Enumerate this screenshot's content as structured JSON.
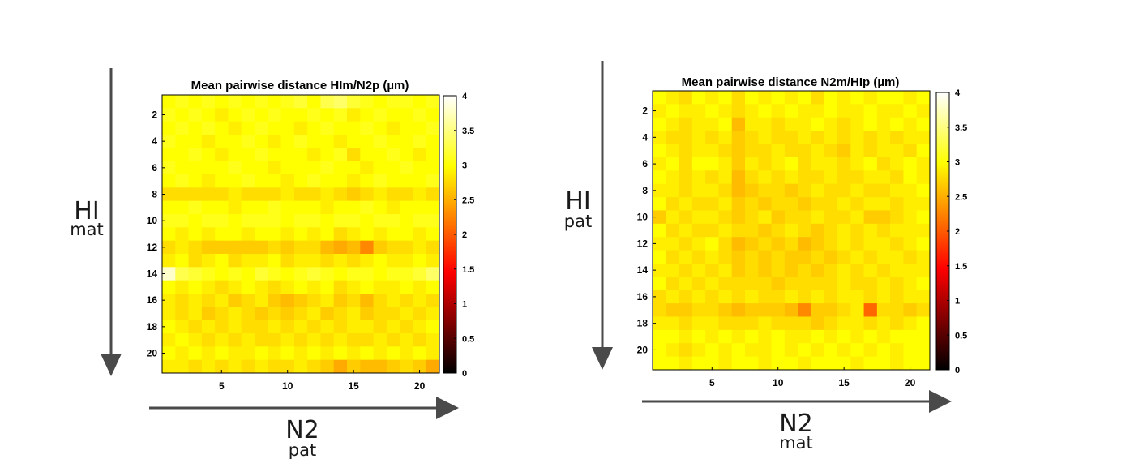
{
  "panels": [
    {
      "id": "left",
      "row_label": {
        "main": "HI",
        "sub": "mat"
      },
      "col_label": {
        "main": "N2",
        "sub": "pat"
      }
    },
    {
      "id": "right",
      "row_label": {
        "main": "HI",
        "sub": "pat"
      },
      "col_label": {
        "main": "N2",
        "sub": "mat"
      }
    }
  ],
  "colors": {
    "colormap": "hot",
    "arrow": "#4a4a4a"
  },
  "chart_data": [
    {
      "type": "heatmap",
      "title": "Mean pairwise distance HIm/N2p (µm)",
      "xlabel": "",
      "ylabel": "",
      "n_cols": 21,
      "n_rows": 21,
      "x_ticks": [
        5,
        10,
        15,
        20
      ],
      "y_ticks": [
        2,
        4,
        6,
        8,
        10,
        12,
        14,
        16,
        18,
        20
      ],
      "clim": [
        0,
        4
      ],
      "colorbar_ticks": [
        "0",
        "0.5",
        "1",
        "1.5",
        "2",
        "2.5",
        "3",
        "3.5",
        "4"
      ],
      "z": [
        [
          3.0,
          3.1,
          3.0,
          3.1,
          3.0,
          3.1,
          3.0,
          3.1,
          3.0,
          3.1,
          3.2,
          3.0,
          3.3,
          3.4,
          3.2,
          3.1,
          3.0,
          3.1,
          3.1,
          3.0,
          3.1
        ],
        [
          3.1,
          3.0,
          3.1,
          3.0,
          2.9,
          3.0,
          3.1,
          3.0,
          3.1,
          3.0,
          3.0,
          3.1,
          3.0,
          3.1,
          2.9,
          3.0,
          3.1,
          3.0,
          3.0,
          3.1,
          3.0
        ],
        [
          3.0,
          3.1,
          3.0,
          3.1,
          3.0,
          2.9,
          3.0,
          3.1,
          3.0,
          3.0,
          2.9,
          3.0,
          3.1,
          3.0,
          3.0,
          3.1,
          3.0,
          2.9,
          3.0,
          3.0,
          3.1
        ],
        [
          3.1,
          3.0,
          3.0,
          2.9,
          3.0,
          3.0,
          3.1,
          3.0,
          2.9,
          3.0,
          3.1,
          3.0,
          3.0,
          2.9,
          3.0,
          3.0,
          3.1,
          3.0,
          3.0,
          3.1,
          3.0
        ],
        [
          3.0,
          3.0,
          3.1,
          3.0,
          2.9,
          3.0,
          3.0,
          3.1,
          3.0,
          3.0,
          3.0,
          2.9,
          3.0,
          3.1,
          2.8,
          3.0,
          3.0,
          3.1,
          3.0,
          2.9,
          3.0
        ],
        [
          3.1,
          3.0,
          3.0,
          3.0,
          3.0,
          3.1,
          3.0,
          3.0,
          2.9,
          3.0,
          3.0,
          3.0,
          3.1,
          3.0,
          3.0,
          2.9,
          3.0,
          3.0,
          3.1,
          3.0,
          3.0
        ],
        [
          3.0,
          3.1,
          3.0,
          2.9,
          3.0,
          3.0,
          3.1,
          3.0,
          3.0,
          2.9,
          3.0,
          3.1,
          3.0,
          3.0,
          2.9,
          3.0,
          3.1,
          3.0,
          3.0,
          3.0,
          3.1
        ],
        [
          2.8,
          2.8,
          2.8,
          2.8,
          2.8,
          2.9,
          2.8,
          2.8,
          2.8,
          2.9,
          2.8,
          2.8,
          2.9,
          2.8,
          2.7,
          2.8,
          2.9,
          2.8,
          2.8,
          2.9,
          2.8
        ],
        [
          3.0,
          3.0,
          3.1,
          3.0,
          3.0,
          2.9,
          3.0,
          3.0,
          3.1,
          3.0,
          3.0,
          3.0,
          2.9,
          3.0,
          3.0,
          3.1,
          3.0,
          2.9,
          3.0,
          3.0,
          3.0
        ],
        [
          3.1,
          3.1,
          3.0,
          3.1,
          3.1,
          3.0,
          3.1,
          3.1,
          3.1,
          3.0,
          3.1,
          3.1,
          3.0,
          3.1,
          3.1,
          3.0,
          3.1,
          3.1,
          3.0,
          3.1,
          3.1
        ],
        [
          3.0,
          2.9,
          3.0,
          2.9,
          3.0,
          3.0,
          2.9,
          3.0,
          3.0,
          2.9,
          3.0,
          2.9,
          3.0,
          2.8,
          2.9,
          3.0,
          2.9,
          3.0,
          3.0,
          2.9,
          3.0
        ],
        [
          2.8,
          2.9,
          2.8,
          2.7,
          2.7,
          2.7,
          2.7,
          2.7,
          2.8,
          2.7,
          2.8,
          2.8,
          2.6,
          2.5,
          2.6,
          2.3,
          2.7,
          2.8,
          2.8,
          2.9,
          2.8
        ],
        [
          2.9,
          3.0,
          2.8,
          2.9,
          3.0,
          2.8,
          2.9,
          2.9,
          3.0,
          2.8,
          2.9,
          2.9,
          2.8,
          2.9,
          2.8,
          2.9,
          3.0,
          2.9,
          2.9,
          3.0,
          2.9
        ],
        [
          3.8,
          3.3,
          3.2,
          3.1,
          3.0,
          3.1,
          3.0,
          3.2,
          3.1,
          3.0,
          3.1,
          3.2,
          3.1,
          3.0,
          3.1,
          3.1,
          3.0,
          3.1,
          3.1,
          3.2,
          3.4
        ],
        [
          3.0,
          2.9,
          3.0,
          2.9,
          2.8,
          2.9,
          3.0,
          2.9,
          2.8,
          2.9,
          3.0,
          2.9,
          3.0,
          2.8,
          2.9,
          3.0,
          2.9,
          2.9,
          3.0,
          2.9,
          3.0
        ],
        [
          2.9,
          2.8,
          2.9,
          2.8,
          2.9,
          2.7,
          2.8,
          2.9,
          2.7,
          2.6,
          2.7,
          2.8,
          2.9,
          2.7,
          2.8,
          2.6,
          2.8,
          2.9,
          2.8,
          2.9,
          2.8
        ],
        [
          2.9,
          2.8,
          2.9,
          2.7,
          2.8,
          2.9,
          2.8,
          2.7,
          2.8,
          2.7,
          2.8,
          2.9,
          2.7,
          2.8,
          2.9,
          2.7,
          2.8,
          2.8,
          2.9,
          2.8,
          2.9
        ],
        [
          3.0,
          2.9,
          2.8,
          2.9,
          2.8,
          2.9,
          2.8,
          2.8,
          2.9,
          2.8,
          2.9,
          2.8,
          2.9,
          2.8,
          2.9,
          2.9,
          2.8,
          2.9,
          2.8,
          2.9,
          3.0
        ],
        [
          2.9,
          3.0,
          2.9,
          2.8,
          2.9,
          2.8,
          2.9,
          2.8,
          2.8,
          2.9,
          2.8,
          2.9,
          2.8,
          2.9,
          2.8,
          2.8,
          2.9,
          2.8,
          2.9,
          2.8,
          2.9
        ],
        [
          3.0,
          2.9,
          3.0,
          2.9,
          3.0,
          2.9,
          2.9,
          3.0,
          2.9,
          3.0,
          2.9,
          3.0,
          2.9,
          3.0,
          2.9,
          3.0,
          2.9,
          3.0,
          2.9,
          3.0,
          2.9
        ],
        [
          2.9,
          2.9,
          2.8,
          2.9,
          2.8,
          2.9,
          2.8,
          2.9,
          2.8,
          2.8,
          2.9,
          2.8,
          2.7,
          2.5,
          2.7,
          2.6,
          2.6,
          2.7,
          2.8,
          2.7,
          2.5
        ]
      ]
    },
    {
      "type": "heatmap",
      "title": "Mean pairwise distance N2m/HIp (µm)",
      "xlabel": "",
      "ylabel": "",
      "n_cols": 21,
      "n_rows": 21,
      "x_ticks": [
        5,
        10,
        15,
        20
      ],
      "y_ticks": [
        2,
        4,
        6,
        8,
        10,
        12,
        14,
        16,
        18,
        20
      ],
      "clim": [
        0,
        4
      ],
      "colorbar_ticks": [
        "0",
        "0.5",
        "1",
        "1.5",
        "2",
        "2.5",
        "3",
        "3.5",
        "4"
      ],
      "z": [
        [
          3.0,
          2.9,
          2.8,
          3.0,
          2.9,
          3.0,
          2.8,
          3.0,
          2.9,
          3.0,
          2.9,
          3.0,
          2.8,
          3.0,
          2.9,
          3.0,
          2.9,
          3.0,
          3.0,
          2.9,
          3.0
        ],
        [
          2.9,
          3.0,
          2.9,
          2.9,
          3.0,
          2.9,
          2.8,
          2.9,
          3.0,
          2.9,
          3.0,
          2.9,
          2.9,
          3.0,
          2.9,
          2.9,
          3.0,
          2.9,
          2.9,
          3.0,
          2.9
        ],
        [
          3.0,
          2.9,
          2.8,
          2.9,
          2.9,
          3.0,
          2.6,
          2.9,
          2.9,
          2.8,
          2.9,
          2.9,
          3.0,
          2.9,
          2.8,
          2.9,
          3.0,
          2.9,
          3.0,
          2.9,
          3.0
        ],
        [
          2.9,
          2.8,
          2.8,
          2.9,
          2.8,
          2.9,
          2.7,
          2.8,
          2.9,
          2.8,
          2.8,
          2.9,
          2.8,
          2.9,
          2.8,
          2.9,
          2.8,
          2.9,
          2.8,
          2.9,
          2.9
        ],
        [
          3.0,
          2.9,
          2.8,
          2.9,
          2.9,
          2.8,
          2.7,
          2.8,
          2.8,
          2.9,
          2.8,
          2.8,
          2.9,
          2.8,
          2.7,
          2.9,
          2.8,
          2.9,
          2.9,
          2.8,
          3.0
        ],
        [
          2.9,
          3.0,
          2.8,
          3.0,
          3.0,
          2.9,
          2.7,
          2.9,
          2.8,
          2.9,
          3.0,
          2.8,
          2.9,
          2.9,
          2.8,
          2.9,
          3.0,
          2.8,
          2.9,
          3.0,
          2.9
        ],
        [
          3.0,
          2.9,
          2.8,
          2.9,
          2.8,
          2.9,
          2.6,
          2.8,
          2.9,
          2.8,
          2.9,
          2.8,
          2.8,
          2.9,
          2.8,
          2.8,
          2.9,
          2.9,
          2.8,
          3.0,
          2.9
        ],
        [
          2.9,
          2.9,
          2.8,
          2.9,
          2.9,
          2.8,
          2.6,
          2.7,
          2.8,
          2.8,
          2.7,
          2.8,
          2.9,
          2.8,
          2.8,
          2.9,
          2.8,
          2.8,
          2.9,
          2.9,
          3.0
        ],
        [
          3.0,
          2.8,
          2.9,
          2.8,
          2.8,
          2.9,
          2.7,
          2.8,
          2.7,
          2.8,
          2.8,
          2.7,
          2.8,
          2.8,
          2.9,
          2.8,
          2.9,
          2.9,
          2.8,
          2.9,
          2.9
        ],
        [
          2.7,
          2.9,
          2.8,
          2.9,
          2.9,
          2.8,
          2.7,
          2.8,
          2.9,
          2.7,
          2.8,
          2.8,
          2.9,
          2.8,
          2.8,
          2.9,
          2.7,
          2.7,
          2.8,
          2.9,
          3.0
        ],
        [
          3.0,
          2.8,
          2.9,
          2.8,
          2.8,
          2.9,
          2.8,
          2.8,
          2.7,
          2.8,
          2.9,
          2.8,
          2.7,
          2.8,
          2.9,
          2.8,
          2.9,
          2.8,
          2.9,
          2.9,
          2.9
        ],
        [
          2.9,
          2.9,
          2.8,
          2.9,
          3.0,
          2.8,
          2.6,
          2.7,
          2.8,
          2.7,
          2.8,
          2.6,
          2.7,
          2.8,
          2.9,
          2.8,
          2.9,
          2.9,
          2.8,
          2.9,
          3.0
        ],
        [
          3.0,
          2.8,
          2.9,
          2.8,
          2.9,
          2.8,
          2.7,
          2.8,
          2.7,
          2.8,
          2.7,
          2.7,
          2.8,
          2.7,
          2.8,
          2.9,
          2.8,
          2.9,
          2.9,
          2.8,
          2.9
        ],
        [
          2.9,
          2.9,
          2.8,
          2.9,
          2.8,
          2.9,
          2.7,
          2.8,
          2.7,
          2.8,
          2.7,
          2.8,
          2.7,
          2.8,
          2.9,
          2.8,
          2.9,
          2.8,
          2.9,
          2.9,
          2.9
        ],
        [
          3.0,
          2.8,
          2.9,
          2.8,
          2.9,
          2.8,
          2.8,
          2.8,
          2.8,
          2.7,
          2.8,
          2.8,
          2.8,
          2.8,
          2.9,
          2.8,
          2.8,
          2.9,
          2.8,
          2.9,
          3.0
        ],
        [
          2.8,
          2.9,
          2.8,
          2.9,
          2.8,
          2.9,
          2.8,
          2.9,
          2.8,
          2.8,
          2.9,
          2.8,
          2.9,
          2.8,
          2.9,
          2.9,
          2.8,
          2.9,
          2.8,
          2.9,
          2.9
        ],
        [
          2.8,
          2.7,
          2.7,
          2.8,
          2.8,
          2.7,
          2.6,
          2.7,
          2.7,
          2.7,
          2.6,
          2.3,
          2.7,
          2.7,
          2.8,
          2.9,
          2.1,
          2.8,
          2.8,
          2.7,
          2.8
        ],
        [
          2.9,
          2.9,
          2.8,
          2.9,
          2.9,
          2.8,
          2.8,
          2.8,
          2.9,
          2.8,
          2.8,
          2.8,
          2.7,
          2.8,
          2.9,
          2.9,
          2.8,
          2.9,
          2.8,
          2.9,
          3.0
        ],
        [
          3.0,
          3.0,
          2.9,
          3.0,
          2.9,
          3.0,
          2.9,
          3.0,
          2.9,
          3.0,
          2.9,
          2.9,
          3.0,
          2.9,
          3.0,
          2.9,
          3.0,
          2.9,
          3.0,
          3.0,
          3.0
        ],
        [
          3.0,
          2.9,
          2.8,
          2.9,
          3.0,
          2.9,
          3.0,
          2.9,
          2.9,
          3.0,
          2.9,
          3.0,
          2.9,
          3.0,
          2.9,
          3.0,
          2.9,
          3.0,
          2.9,
          3.0,
          3.0
        ],
        [
          3.0,
          3.0,
          2.9,
          3.0,
          3.0,
          2.9,
          3.0,
          3.0,
          2.9,
          3.0,
          3.0,
          2.9,
          3.0,
          3.0,
          3.0,
          2.9,
          3.0,
          3.0,
          2.9,
          3.0,
          3.0
        ]
      ]
    }
  ]
}
